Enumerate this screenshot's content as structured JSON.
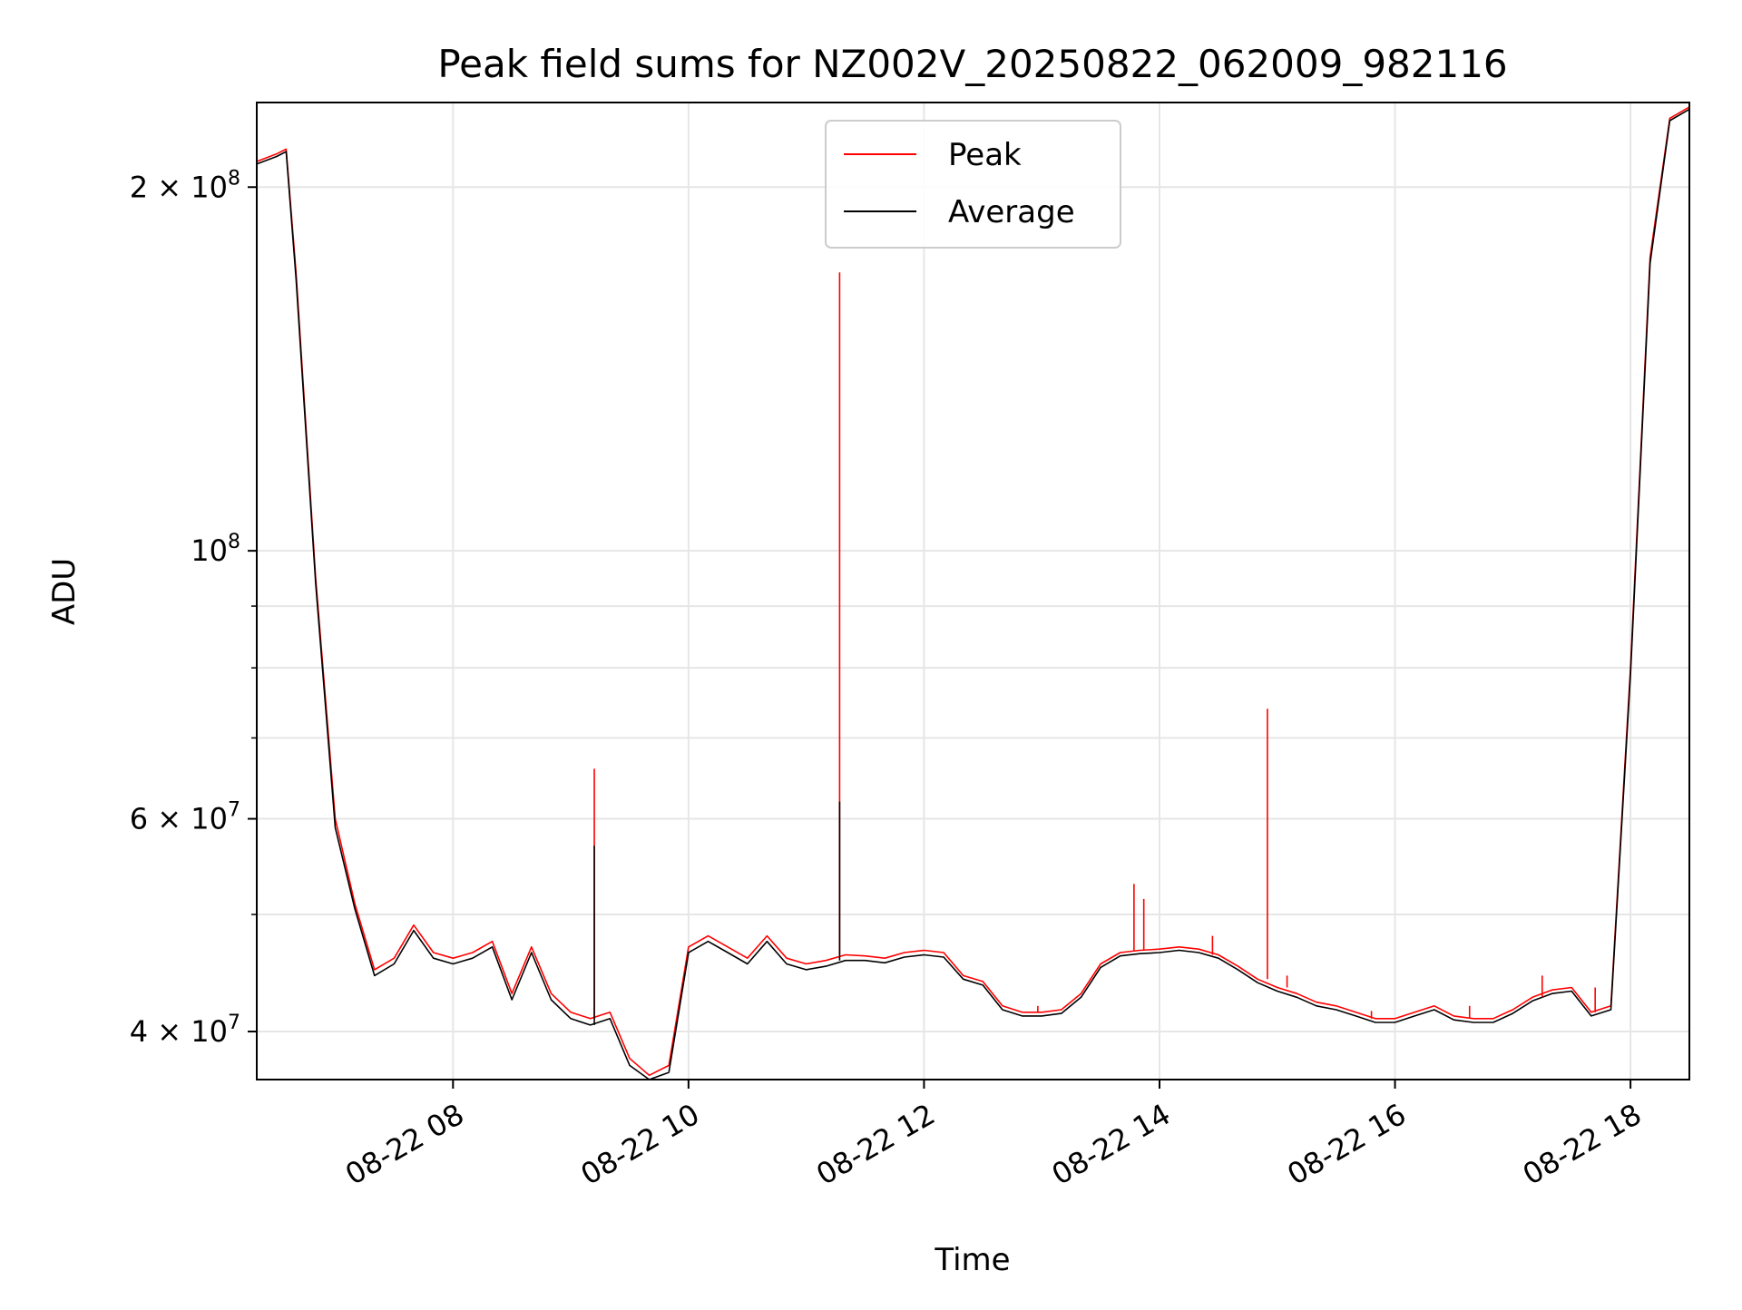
{
  "chart_data": {
    "type": "line",
    "title": "Peak field sums for NZ002V_20250822_062009_982116",
    "xlabel": "Time",
    "ylabel": "ADU",
    "y_scale": "log",
    "grid": true,
    "legend_position": "top-center",
    "xlim": [
      "2025-08-22 06:20",
      "2025-08-22 18:30"
    ],
    "ylim": [
      36500000,
      235000000
    ],
    "x_ticks": [
      {
        "value": "2025-08-22 08:00",
        "label": "08-22 08"
      },
      {
        "value": "2025-08-22 10:00",
        "label": "08-22 10"
      },
      {
        "value": "2025-08-22 12:00",
        "label": "08-22 12"
      },
      {
        "value": "2025-08-22 14:00",
        "label": "08-22 14"
      },
      {
        "value": "2025-08-22 16:00",
        "label": "08-22 16"
      },
      {
        "value": "2025-08-22 18:00",
        "label": "08-22 18"
      }
    ],
    "y_ticks": [
      {
        "value": 40000000,
        "label_base": "4 × 10",
        "label_exp": "7"
      },
      {
        "value": 60000000,
        "label_base": "6 × 10",
        "label_exp": "7"
      },
      {
        "value": 100000000,
        "label_base": "10",
        "label_exp": "8"
      },
      {
        "value": 200000000,
        "label_base": "2 × 10",
        "label_exp": "8"
      }
    ],
    "y_minor_ticks": [
      50000000,
      70000000,
      80000000,
      90000000
    ],
    "series": [
      {
        "name": "Peak",
        "color": "#ff0000",
        "x": [
          "2025-08-22 06:20",
          "2025-08-22 06:30",
          "2025-08-22 06:35",
          "2025-08-22 06:40",
          "2025-08-22 06:50",
          "2025-08-22 07:00",
          "2025-08-22 07:10",
          "2025-08-22 07:20",
          "2025-08-22 07:30",
          "2025-08-22 07:40",
          "2025-08-22 07:50",
          "2025-08-22 08:00",
          "2025-08-22 08:10",
          "2025-08-22 08:20",
          "2025-08-22 08:30",
          "2025-08-22 08:40",
          "2025-08-22 08:50",
          "2025-08-22 09:00",
          "2025-08-22 09:10",
          "2025-08-22 09:20",
          "2025-08-22 09:30",
          "2025-08-22 09:40",
          "2025-08-22 09:50",
          "2025-08-22 10:00",
          "2025-08-22 10:10",
          "2025-08-22 10:20",
          "2025-08-22 10:30",
          "2025-08-22 10:40",
          "2025-08-22 10:50",
          "2025-08-22 11:00",
          "2025-08-22 11:10",
          "2025-08-22 11:20",
          "2025-08-22 11:30",
          "2025-08-22 11:40",
          "2025-08-22 11:50",
          "2025-08-22 12:00",
          "2025-08-22 12:10",
          "2025-08-22 12:20",
          "2025-08-22 12:30",
          "2025-08-22 12:40",
          "2025-08-22 12:50",
          "2025-08-22 13:00",
          "2025-08-22 13:10",
          "2025-08-22 13:20",
          "2025-08-22 13:30",
          "2025-08-22 13:40",
          "2025-08-22 13:50",
          "2025-08-22 14:00",
          "2025-08-22 14:10",
          "2025-08-22 14:20",
          "2025-08-22 14:30",
          "2025-08-22 14:40",
          "2025-08-22 14:50",
          "2025-08-22 15:00",
          "2025-08-22 15:10",
          "2025-08-22 15:20",
          "2025-08-22 15:30",
          "2025-08-22 15:40",
          "2025-08-22 15:50",
          "2025-08-22 16:00",
          "2025-08-22 16:10",
          "2025-08-22 16:20",
          "2025-08-22 16:30",
          "2025-08-22 16:40",
          "2025-08-22 16:50",
          "2025-08-22 17:00",
          "2025-08-22 17:10",
          "2025-08-22 17:20",
          "2025-08-22 17:30",
          "2025-08-22 17:40",
          "2025-08-22 17:50",
          "2025-08-22 18:00",
          "2025-08-22 18:10",
          "2025-08-22 18:20",
          "2025-08-22 18:30"
        ],
        "y": [
          210000000,
          213000000,
          215000000,
          170000000,
          95000000,
          60000000,
          51000000,
          45000000,
          46000000,
          49000000,
          46500000,
          46000000,
          46500000,
          47500000,
          43000000,
          47000000,
          43000000,
          41500000,
          41000000,
          41500000,
          38000000,
          36800000,
          37500000,
          47000000,
          48000000,
          47000000,
          46000000,
          48000000,
          46000000,
          45500000,
          45800000,
          46300000,
          46200000,
          46000000,
          46500000,
          46700000,
          46500000,
          44500000,
          44000000,
          42000000,
          41500000,
          41500000,
          41700000,
          43000000,
          45500000,
          46500000,
          46700000,
          46800000,
          47000000,
          46800000,
          46300000,
          45300000,
          44200000,
          43500000,
          43000000,
          42300000,
          42000000,
          41500000,
          41000000,
          41000000,
          41500000,
          42000000,
          41200000,
          41000000,
          41000000,
          41700000,
          42700000,
          43300000,
          43500000,
          41500000,
          42000000,
          80000000,
          175000000,
          228000000,
          233000000
        ]
      },
      {
        "name": "Average",
        "color": "#000000",
        "x": [
          "2025-08-22 06:20",
          "2025-08-22 06:30",
          "2025-08-22 06:35",
          "2025-08-22 06:40",
          "2025-08-22 06:50",
          "2025-08-22 07:00",
          "2025-08-22 07:10",
          "2025-08-22 07:20",
          "2025-08-22 07:30",
          "2025-08-22 07:40",
          "2025-08-22 07:50",
          "2025-08-22 08:00",
          "2025-08-22 08:10",
          "2025-08-22 08:20",
          "2025-08-22 08:30",
          "2025-08-22 08:40",
          "2025-08-22 08:50",
          "2025-08-22 09:00",
          "2025-08-22 09:10",
          "2025-08-22 09:20",
          "2025-08-22 09:30",
          "2025-08-22 09:40",
          "2025-08-22 09:50",
          "2025-08-22 10:00",
          "2025-08-22 10:10",
          "2025-08-22 10:20",
          "2025-08-22 10:30",
          "2025-08-22 10:40",
          "2025-08-22 10:50",
          "2025-08-22 11:00",
          "2025-08-22 11:10",
          "2025-08-22 11:20",
          "2025-08-22 11:30",
          "2025-08-22 11:40",
          "2025-08-22 11:50",
          "2025-08-22 12:00",
          "2025-08-22 12:10",
          "2025-08-22 12:20",
          "2025-08-22 12:30",
          "2025-08-22 12:40",
          "2025-08-22 12:50",
          "2025-08-22 13:00",
          "2025-08-22 13:10",
          "2025-08-22 13:20",
          "2025-08-22 13:30",
          "2025-08-22 13:40",
          "2025-08-22 13:50",
          "2025-08-22 14:00",
          "2025-08-22 14:10",
          "2025-08-22 14:20",
          "2025-08-22 14:30",
          "2025-08-22 14:40",
          "2025-08-22 14:50",
          "2025-08-22 15:00",
          "2025-08-22 15:10",
          "2025-08-22 15:20",
          "2025-08-22 15:30",
          "2025-08-22 15:40",
          "2025-08-22 15:50",
          "2025-08-22 16:00",
          "2025-08-22 16:10",
          "2025-08-22 16:20",
          "2025-08-22 16:30",
          "2025-08-22 16:40",
          "2025-08-22 16:50",
          "2025-08-22 17:00",
          "2025-08-22 17:10",
          "2025-08-22 17:20",
          "2025-08-22 17:30",
          "2025-08-22 17:40",
          "2025-08-22 17:50",
          "2025-08-22 18:00",
          "2025-08-22 18:10",
          "2025-08-22 18:20",
          "2025-08-22 18:30"
        ],
        "y": [
          209000000,
          212000000,
          214000000,
          168000000,
          94000000,
          59000000,
          50500000,
          44500000,
          45500000,
          48500000,
          46000000,
          45500000,
          46000000,
          47000000,
          42500000,
          46500000,
          42500000,
          41000000,
          40500000,
          41000000,
          37500000,
          36500000,
          37000000,
          46500000,
          47500000,
          46500000,
          45500000,
          47500000,
          45500000,
          45000000,
          45300000,
          45800000,
          45800000,
          45600000,
          46100000,
          46300000,
          46100000,
          44200000,
          43700000,
          41700000,
          41200000,
          41200000,
          41400000,
          42700000,
          45200000,
          46200000,
          46400000,
          46500000,
          46700000,
          46500000,
          46000000,
          45000000,
          43900000,
          43200000,
          42700000,
          42000000,
          41700000,
          41200000,
          40700000,
          40700000,
          41200000,
          41700000,
          40900000,
          40700000,
          40700000,
          41400000,
          42400000,
          43000000,
          43200000,
          41200000,
          41700000,
          79000000,
          173000000,
          227000000,
          232000000
        ]
      }
    ],
    "spikes": [
      {
        "series": "Peak",
        "x": "2025-08-22 09:12",
        "y": 66000000
      },
      {
        "series": "Average",
        "x": "2025-08-22 09:12",
        "y": 57000000
      },
      {
        "series": "Peak",
        "x": "2025-08-22 11:17",
        "y": 170000000
      },
      {
        "series": "Average",
        "x": "2025-08-22 11:17",
        "y": 62000000
      },
      {
        "series": "Peak",
        "x": "2025-08-22 13:47",
        "y": 53000000
      },
      {
        "series": "Peak",
        "x": "2025-08-22 13:52",
        "y": 51500000
      },
      {
        "series": "Peak",
        "x": "2025-08-22 14:55",
        "y": 74000000
      },
      {
        "series": "Peak",
        "x": "2025-08-22 14:27",
        "y": 48000000
      },
      {
        "series": "Peak",
        "x": "2025-08-22 15:05",
        "y": 44500000
      },
      {
        "series": "Peak",
        "x": "2025-08-22 12:58",
        "y": 42000000
      },
      {
        "series": "Peak",
        "x": "2025-08-22 15:48",
        "y": 41600000
      },
      {
        "series": "Peak",
        "x": "2025-08-22 16:38",
        "y": 42000000
      },
      {
        "series": "Peak",
        "x": "2025-08-22 17:15",
        "y": 44500000
      },
      {
        "series": "Peak",
        "x": "2025-08-22 17:42",
        "y": 43500000
      }
    ]
  }
}
